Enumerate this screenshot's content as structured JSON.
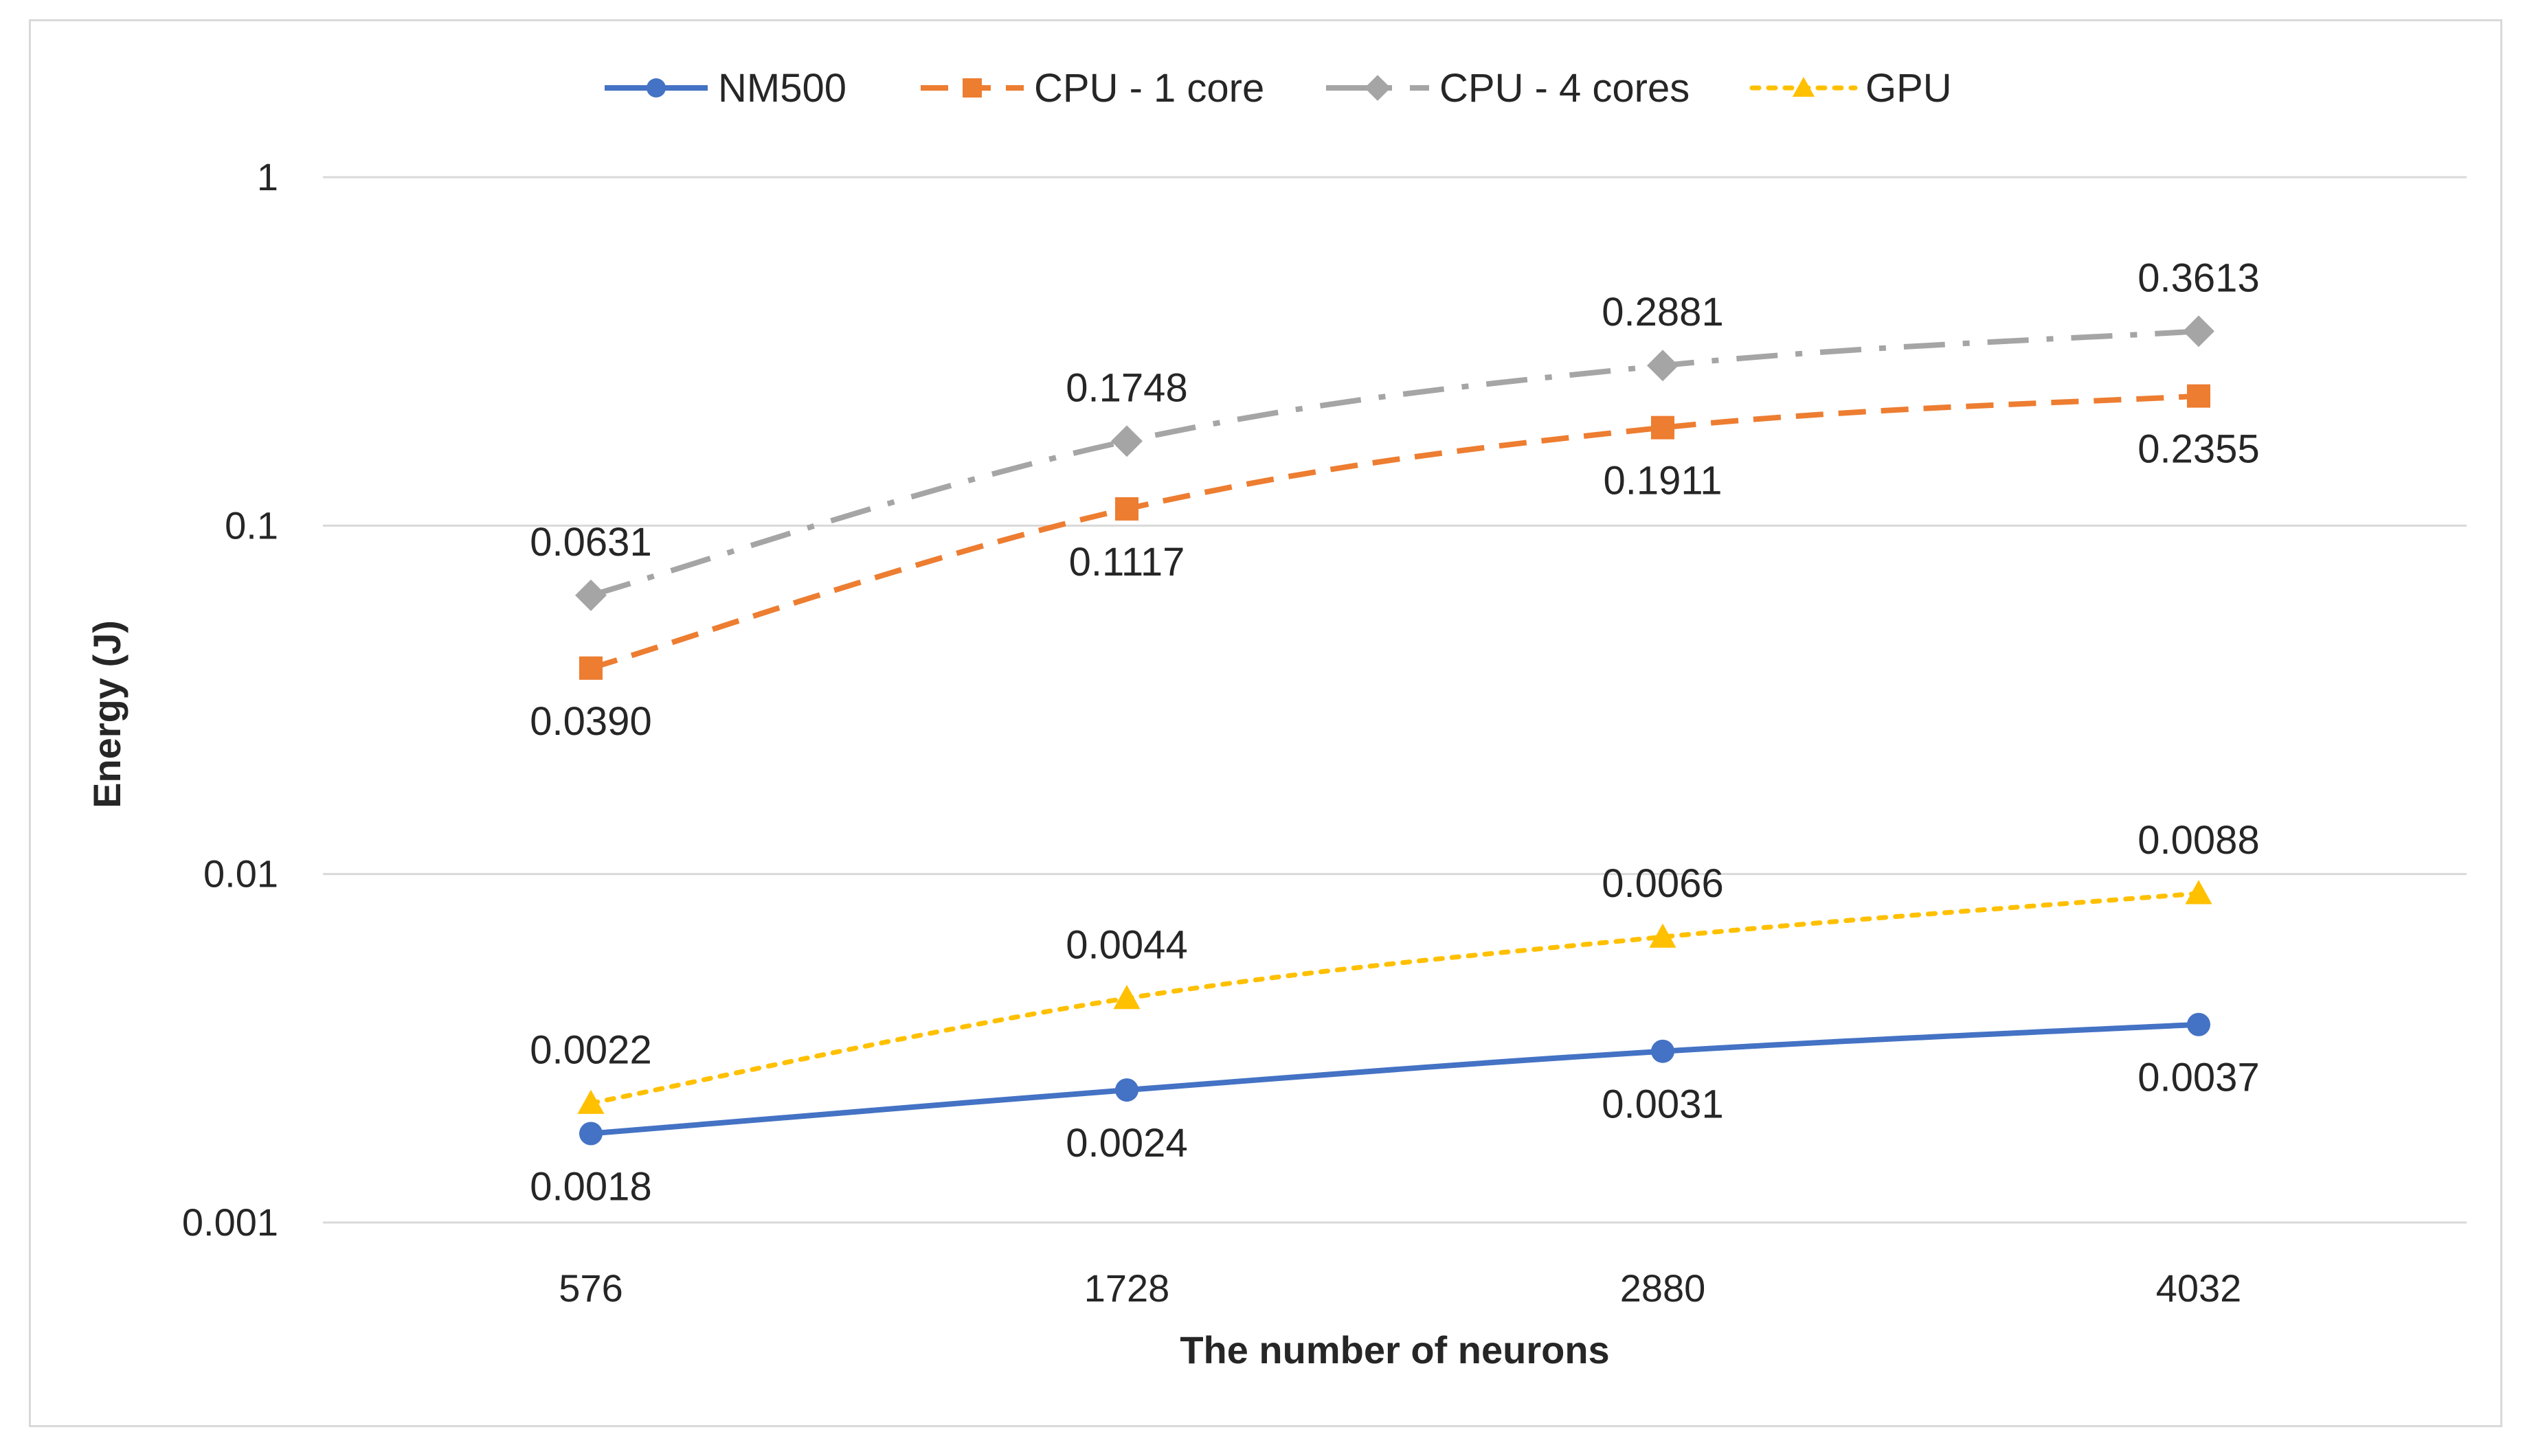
{
  "chart_data": {
    "type": "line",
    "title": "",
    "xlabel": "The number of neurons",
    "ylabel": "Energy (J)",
    "yscale": "log",
    "ylim": [
      0.001,
      1
    ],
    "yticks": [
      {
        "value": 0.001,
        "label": "0.001"
      },
      {
        "value": 0.01,
        "label": "0.01"
      },
      {
        "value": 0.1,
        "label": "0.1"
      },
      {
        "value": 1,
        "label": "1"
      }
    ],
    "categories": [
      "576",
      "1728",
      "2880",
      "4032"
    ],
    "legend_position": "top",
    "grid": true,
    "series": [
      {
        "name": "NM500",
        "color": "#4472c4",
        "dash": "solid",
        "marker": "circle",
        "values": [
          0.0018,
          0.0024,
          0.0031,
          0.0037
        ],
        "labels": [
          "0.0018",
          "0.0024",
          "0.0031",
          "0.0037"
        ],
        "label_pos": [
          "below",
          "below",
          "below",
          "below"
        ]
      },
      {
        "name": "CPU - 1 core",
        "color": "#ed7d31",
        "dash": "dash",
        "marker": "square",
        "values": [
          0.039,
          0.1117,
          0.1911,
          0.2355
        ],
        "labels": [
          "0.0390",
          "0.1117",
          "0.1911",
          "0.2355"
        ],
        "label_pos": [
          "below",
          "below",
          "below",
          "below"
        ]
      },
      {
        "name": "CPU - 4 cores",
        "color": "#a5a5a5",
        "dash": "dashdot",
        "marker": "diamond",
        "values": [
          0.0631,
          0.1748,
          0.2881,
          0.3613
        ],
        "labels": [
          "0.0631",
          "0.1748",
          "0.2881",
          "0.3613"
        ],
        "label_pos": [
          "above",
          "above",
          "above",
          "above"
        ]
      },
      {
        "name": "GPU",
        "color": "#ffc000",
        "dash": "dot",
        "marker": "triangle",
        "values": [
          0.0022,
          0.0044,
          0.0066,
          0.0088
        ],
        "labels": [
          "0.0022",
          "0.0044",
          "0.0066",
          "0.0088"
        ],
        "label_pos": [
          "above",
          "above",
          "above",
          "above"
        ]
      }
    ]
  }
}
